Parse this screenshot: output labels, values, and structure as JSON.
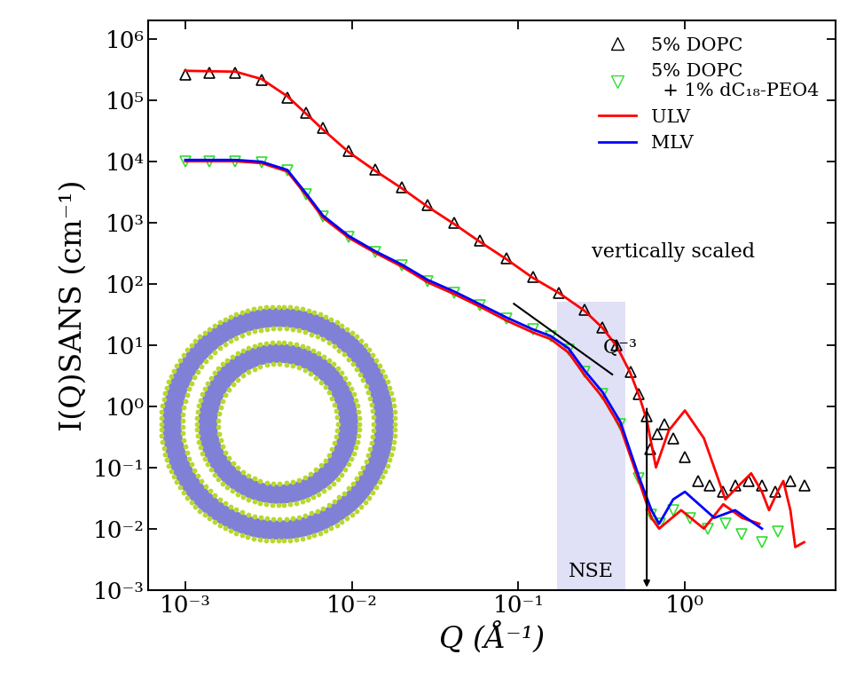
{
  "chart_data": {
    "type": "scatter",
    "x_label": "Q (Å⁻¹)",
    "y_label": "I(Q)SANS (cm⁻¹)",
    "log": true,
    "grid": false,
    "legend": "upper right",
    "xlim": [
      0.0006,
      8
    ],
    "ylim": [
      0.001,
      2000000
    ],
    "xticks": [
      {
        "value": 0.001,
        "label": "10⁻³"
      },
      {
        "value": 0.01,
        "label": "10⁻²"
      },
      {
        "value": 0.1,
        "label": "10⁻¹"
      },
      {
        "value": 1,
        "label": "10⁰"
      }
    ],
    "yticks": [
      {
        "value": 0.001,
        "label": "10⁻³"
      },
      {
        "value": 0.01,
        "label": "10⁻²"
      },
      {
        "value": 0.1,
        "label": "10⁻¹"
      },
      {
        "value": 1,
        "label": "10⁰"
      },
      {
        "value": 10,
        "label": "10¹"
      },
      {
        "value": 100,
        "label": "10²"
      },
      {
        "value": 1000,
        "label": "10³"
      },
      {
        "value": 10000,
        "label": "10⁴"
      },
      {
        "value": 100000,
        "label": "10⁵"
      },
      {
        "value": 1000000,
        "label": "10⁶"
      }
    ],
    "series": [
      {
        "name": "5% DOPC",
        "type": "scatter",
        "color": "#000000",
        "marker": "triangle_up",
        "curves": [
          {
            "x": [
              0.001,
              0.00139,
              0.002,
              0.00287,
              0.0041,
              0.0053,
              0.0067,
              0.0096,
              0.0138,
              0.02,
              0.0286,
              0.041,
              0.059,
              0.085,
              0.122,
              0.176,
              0.25,
              0.32,
              0.39,
              0.47,
              0.53,
              0.59,
              0.62,
              0.68,
              0.75,
              0.85,
              1.0,
              1.2,
              1.4,
              1.7,
              2.0,
              2.4,
              2.9,
              3.5,
              4.3,
              5.2
            ],
            "values": [
              260000,
              280000,
              280000,
              210000,
              110000,
              62000,
              35000,
              15000,
              7400,
              3800,
              1900,
              1000,
              500,
              260,
              130,
              72,
              37,
              19,
              9.8,
              3.6,
              1.6,
              0.69,
              0.2,
              0.35,
              0.5,
              0.3,
              0.15,
              0.06,
              0.05,
              0.04,
              0.05,
              0.06,
              0.05,
              0.04,
              0.06,
              0.05
            ]
          }
        ]
      },
      {
        "name": "5% DOPC\n  + 1% dC₁₈-PEO4",
        "type": "scatter",
        "color": "#33dd33",
        "marker": "triangle_down",
        "curves": [
          {
            "x": [
              0.001,
              0.00139,
              0.002,
              0.00287,
              0.0041,
              0.0053,
              0.0067,
              0.0096,
              0.0138,
              0.02,
              0.0286,
              0.041,
              0.059,
              0.085,
              0.122,
              0.156,
              0.2,
              0.25,
              0.32,
              0.41,
              0.53,
              0.63,
              0.71,
              0.85,
              1.08,
              1.37,
              1.75,
              2.2,
              2.9,
              3.6
            ],
            "values": [
              10000,
              10000,
              10000,
              9500,
              7000,
              2900,
              1250,
              580,
              330,
              200,
              110,
              72,
              45,
              27,
              18,
              14,
              8.5,
              3.6,
              1.6,
              0.5,
              0.066,
              0.017,
              0.012,
              0.02,
              0.015,
              0.01,
              0.012,
              0.008,
              0.006,
              0.009
            ]
          }
        ]
      },
      {
        "name": "ULV",
        "type": "line",
        "color": "#ff0000",
        "line_style": "solid",
        "curves": [
          {
            "x": [
              0.001,
              0.002,
              0.00287,
              0.0041,
              0.0053,
              0.0067,
              0.0096,
              0.0138,
              0.02,
              0.0286,
              0.041,
              0.059,
              0.085,
              0.122,
              0.176,
              0.25,
              0.32,
              0.39,
              0.47,
              0.53,
              0.59,
              0.67,
              0.8,
              1.0,
              1.3,
              1.75,
              2.1,
              2.5,
              2.9,
              3.2,
              3.6,
              3.9,
              4.3,
              4.6,
              5.2
            ],
            "values": [
              300000,
              290000,
              220000,
              115000,
              60000,
              33000,
              14000,
              7000,
              3600,
              1800,
              950,
              480,
              250,
              125,
              70,
              36,
              19,
              9.5,
              3.5,
              1.5,
              0.6,
              0.1,
              0.4,
              0.85,
              0.3,
              0.03,
              0.05,
              0.08,
              0.04,
              0.02,
              0.04,
              0.06,
              0.02,
              0.005,
              0.006
            ]
          },
          {
            "x": [
              0.001,
              0.002,
              0.00287,
              0.0041,
              0.0053,
              0.0067,
              0.0096,
              0.0138,
              0.02,
              0.0286,
              0.041,
              0.059,
              0.085,
              0.122,
              0.156,
              0.2,
              0.25,
              0.32,
              0.41,
              0.53,
              0.63,
              0.7,
              0.95,
              1.3,
              1.7,
              2.2,
              2.8
            ],
            "values": [
              10000,
              10000,
              9300,
              6800,
              2800,
              1200,
              560,
              320,
              190,
              105,
              68,
              42,
              25,
              16,
              12.5,
              7.5,
              3.2,
              1.4,
              0.45,
              0.06,
              0.015,
              0.01,
              0.02,
              0.01,
              0.025,
              0.015,
              0.012
            ]
          }
        ]
      },
      {
        "name": "MLV",
        "type": "line",
        "color": "#0000ff",
        "line_style": "solid",
        "curves": [
          {
            "x": [
              0.001,
              0.002,
              0.00287,
              0.0041,
              0.0053,
              0.0067,
              0.0096,
              0.0138,
              0.02,
              0.0286,
              0.041,
              0.059,
              0.085,
              0.122,
              0.156,
              0.2,
              0.25,
              0.32,
              0.41,
              0.53,
              0.63,
              0.7,
              0.85,
              1.0,
              1.5,
              2.0,
              2.9
            ],
            "values": [
              10500,
              10500,
              9800,
              7200,
              3000,
              1300,
              600,
              340,
              205,
              115,
              75,
              46,
              28,
              18,
              14,
              8.8,
              3.8,
              1.7,
              0.55,
              0.07,
              0.02,
              0.012,
              0.03,
              0.04,
              0.015,
              0.02,
              0.01
            ]
          }
        ]
      }
    ],
    "annotations": [
      {
        "text": "vertically scaled",
        "x": 0.85,
        "y": 330
      },
      {
        "text": "Q⁻³",
        "x": 0.41,
        "y": 9
      }
    ],
    "power_law_line": {
      "x": [
        0.094,
        0.366
      ],
      "values": [
        47,
        3.3
      ]
    },
    "band": {
      "label": "NSE",
      "x": [
        0.17,
        0.44
      ],
      "y_top": 50,
      "label_y": 0.002
    },
    "arrow": {
      "x": 0.59,
      "y_from": 1,
      "y_to": 0.001
    }
  }
}
